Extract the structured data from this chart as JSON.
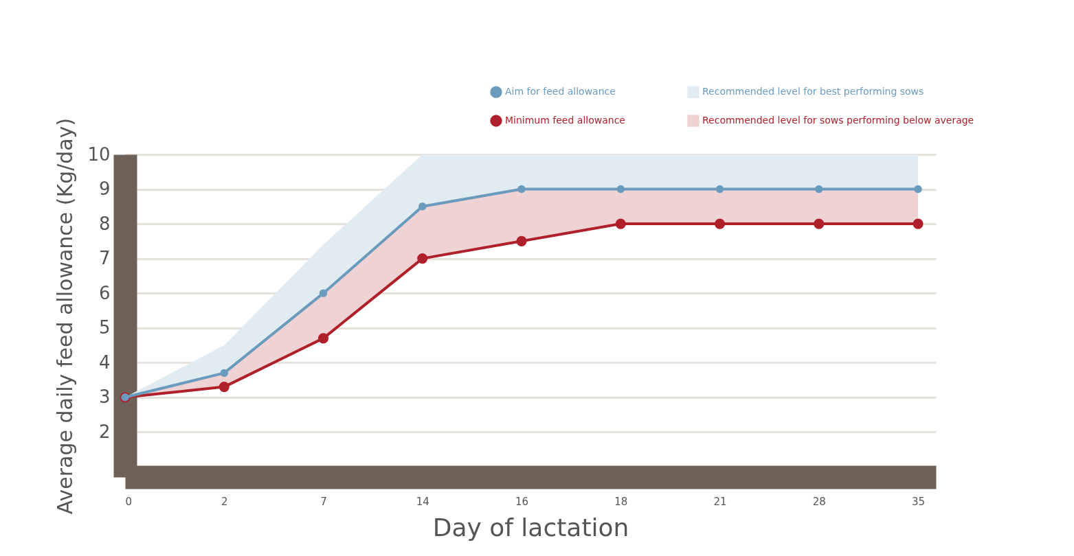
{
  "chart_data": {
    "type": "line",
    "xlabel": "Day of lactation",
    "ylabel": "Average daily feed allowance (Kg/day)",
    "categories": [
      "0",
      "2",
      "7",
      "14",
      "16",
      "18",
      "21",
      "28",
      "35"
    ],
    "series": [
      {
        "name": "Aim for feed allowance",
        "color": "#6a9bbd",
        "values": [
          3,
          3.7,
          6,
          8.5,
          9,
          9,
          9,
          9,
          9
        ],
        "lower": [
          3,
          3.7,
          6,
          8.5,
          9,
          9,
          9,
          9,
          9
        ],
        "upper": [
          3,
          4.5,
          7.4,
          10,
          10,
          10,
          10,
          10,
          10
        ]
      },
      {
        "name": "Minimum feed allowance",
        "color": "#b0202a",
        "values": [
          3,
          3.3,
          4.7,
          7,
          7.5,
          8,
          8,
          8,
          8
        ],
        "lower": [
          3,
          3.3,
          4.7,
          7,
          7.5,
          8,
          8,
          8,
          8
        ],
        "upper": [
          3,
          3.7,
          6,
          8.5,
          9,
          9,
          9,
          9,
          9
        ]
      }
    ],
    "annotations": [
      "Recommended level for best performing sows",
      "Recommended level for sows performing below average"
    ],
    "ylim": [
      0.7,
      10
    ],
    "yticks": [
      2,
      3,
      4,
      5,
      6,
      7,
      8,
      9,
      10
    ],
    "grid": "y",
    "legend": "top right",
    "marker": "circle",
    "line_style": "solid"
  }
}
